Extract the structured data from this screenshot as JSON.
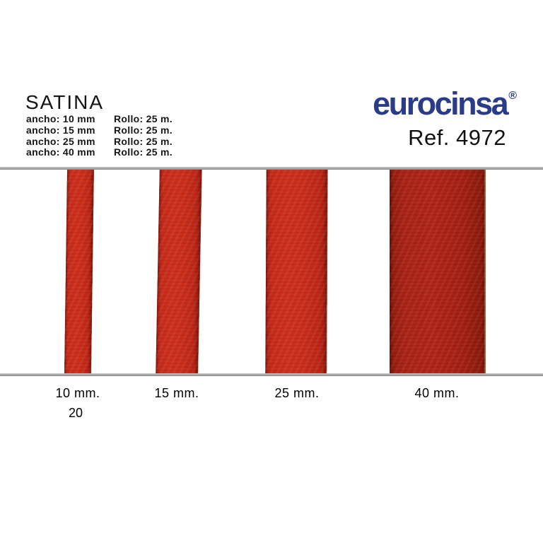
{
  "header": {
    "product_name": "SATINA",
    "specs": [
      {
        "ancho": "ancho: 10 mm",
        "rollo": "Rollo: 25 m."
      },
      {
        "ancho": "ancho: 15 mm",
        "rollo": "Rollo: 25 m."
      },
      {
        "ancho": "ancho: 25 mm",
        "rollo": "Rollo: 25 m."
      },
      {
        "ancho": "ancho: 40 mm",
        "rollo": "Rollo: 25 m."
      }
    ]
  },
  "brand": {
    "logo_text": "eurocinsa",
    "registered_mark": "®",
    "reference": "Ref. 4972",
    "logo_color": "#2a3b87"
  },
  "ribbons": {
    "base_color": "#c52817",
    "dark_color": "#a82013",
    "items": [
      {
        "label": "10 mm.",
        "width_mm": 10
      },
      {
        "label": "15 mm.",
        "width_mm": 15
      },
      {
        "label": "25 mm.",
        "width_mm": 25
      },
      {
        "label": "40 mm.",
        "width_mm": 40
      }
    ]
  },
  "footer": {
    "page_number": "20"
  }
}
